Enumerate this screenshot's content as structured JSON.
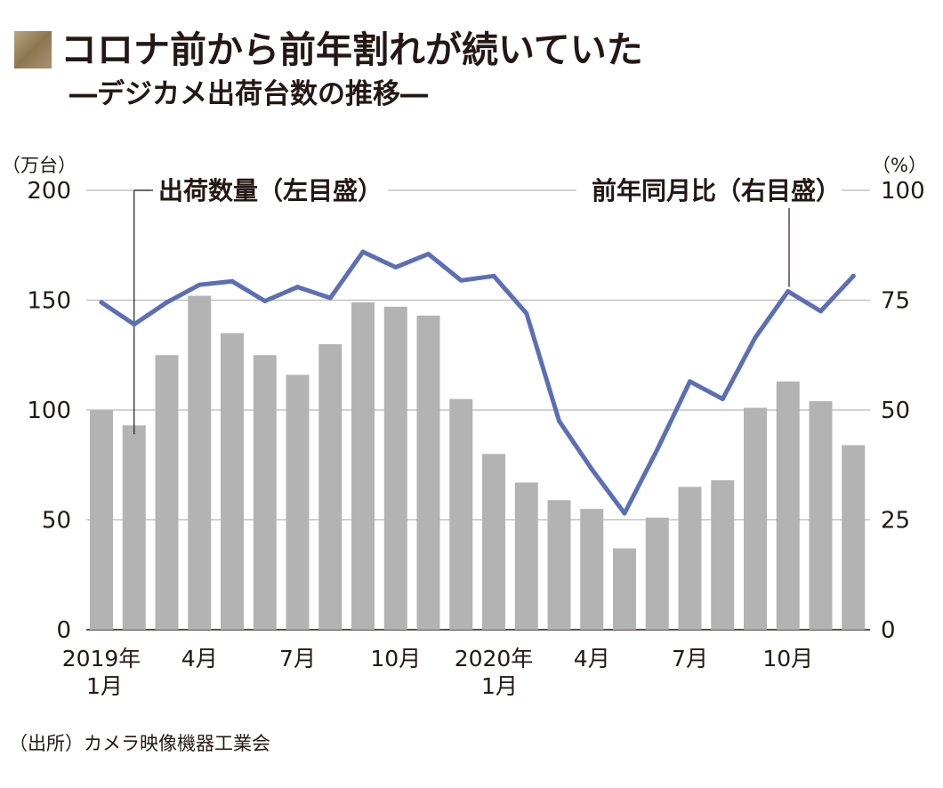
{
  "header": {
    "title": "コロナ前から前年割れが続いていた",
    "subtitle": "―デジカメ出荷台数の推移―",
    "mark_color": "#9b8762"
  },
  "source": "（出所）カメラ映像機器工業会",
  "chart_data": {
    "type": "bar+line",
    "y_left": {
      "unit": "（万台）",
      "ylim": [
        0,
        200
      ],
      "ticks": [
        "0",
        "50",
        "100",
        "150",
        "200"
      ]
    },
    "y_right": {
      "unit": "（%）",
      "ylim": [
        0,
        100
      ],
      "ticks": [
        "0",
        "25",
        "50",
        "75",
        "100"
      ]
    },
    "x_tick_labels": [
      {
        "index": 0,
        "lines": [
          "2019年",
          "1月"
        ]
      },
      {
        "index": 3,
        "lines": [
          "4月"
        ]
      },
      {
        "index": 6,
        "lines": [
          "7月"
        ]
      },
      {
        "index": 9,
        "lines": [
          "10月"
        ]
      },
      {
        "index": 12,
        "lines": [
          "2020年",
          "1月"
        ]
      },
      {
        "index": 15,
        "lines": [
          "4月"
        ]
      },
      {
        "index": 18,
        "lines": [
          "7月"
        ]
      },
      {
        "index": 21,
        "lines": [
          "10月"
        ]
      }
    ],
    "series": [
      {
        "name": "出荷数量（左目盛）",
        "type": "bar",
        "axis": "left",
        "color": "#b3b3b3",
        "values": [
          100,
          93,
          125,
          152,
          135,
          125,
          116,
          130,
          149,
          147,
          143,
          105,
          80,
          67,
          59,
          55,
          37,
          51,
          65,
          68,
          101,
          113,
          104,
          84
        ]
      },
      {
        "name": "前年同月比（右目盛）",
        "type": "line",
        "axis": "right",
        "color": "#5b6fb5",
        "values": [
          74.5,
          69.5,
          74.5,
          78.5,
          79.3,
          74.8,
          78,
          75.5,
          86,
          82.5,
          85.5,
          79.5,
          80.5,
          72,
          47.5,
          36.5,
          26.5,
          41,
          56.5,
          52.5,
          66.5,
          77,
          72.5,
          80.5
        ]
      }
    ],
    "grid": true,
    "legend": "callout-labels"
  }
}
